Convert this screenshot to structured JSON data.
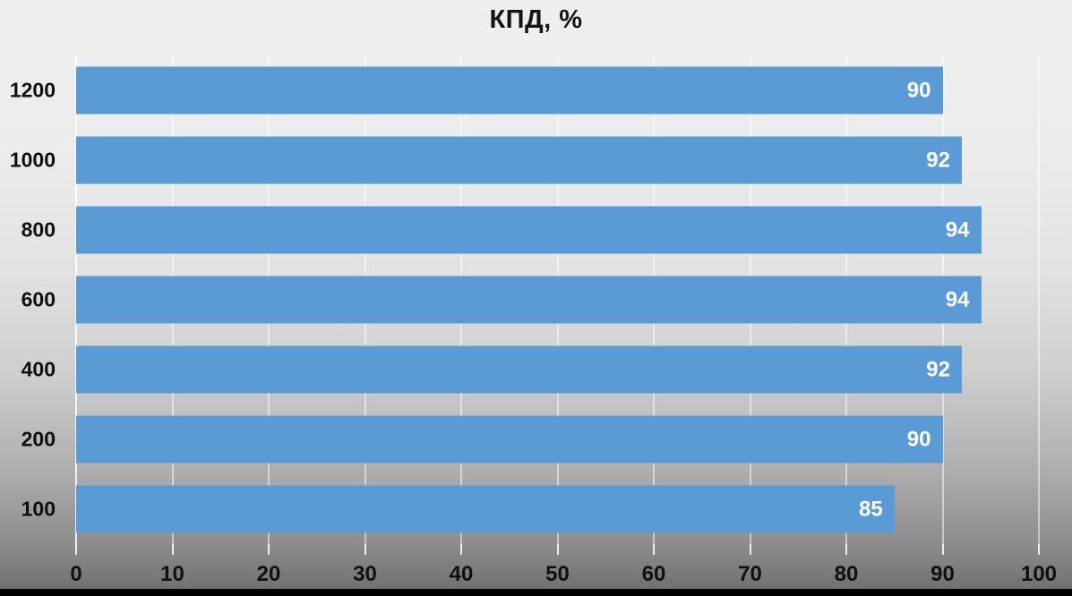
{
  "chart_data": {
    "type": "bar",
    "orientation": "horizontal",
    "title": "КПД, %",
    "categories": [
      "1200",
      "1000",
      "800",
      "600",
      "400",
      "200",
      "100"
    ],
    "values": [
      90,
      92,
      94,
      94,
      92,
      90,
      85
    ],
    "value_labels": [
      "90",
      "92",
      "94",
      "94",
      "92",
      "90",
      "85"
    ],
    "xlabel": "",
    "ylabel": "",
    "xlim": [
      0,
      100
    ],
    "x_ticks": [
      "0",
      "10",
      "20",
      "30",
      "40",
      "50",
      "60",
      "70",
      "80",
      "90",
      "100"
    ],
    "grid": true,
    "legend": false,
    "colors": {
      "bar": "#5b9bd5",
      "value_label": "#ffffff",
      "axis_text": "#101010",
      "title_text": "#141414",
      "gridline": "rgba(255,255,255,0.5)",
      "background_top": "#efefef",
      "background_bottom": "#6e6e6e",
      "bottom_strip": "#000000"
    }
  }
}
